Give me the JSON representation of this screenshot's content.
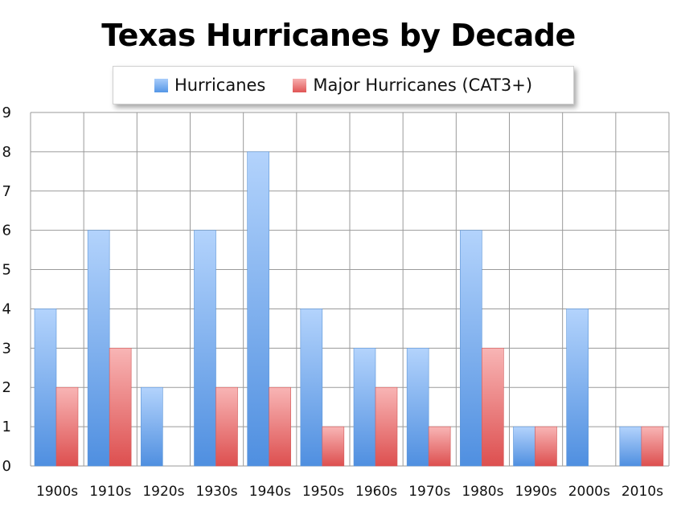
{
  "colors": {
    "hurricanes": "#6fa8f0",
    "major": "#ec6b6b"
  },
  "chart_data": {
    "type": "bar",
    "title": "Texas Hurricanes by Decade",
    "xlabel": "",
    "ylabel": "",
    "ylim": [
      0,
      9
    ],
    "yticks": [
      "0",
      "1",
      "2",
      "3",
      "4",
      "5",
      "6",
      "7",
      "8",
      "9"
    ],
    "grid": true,
    "legend_position": "top",
    "categories": [
      "1900s",
      "1910s",
      "1920s",
      "1930s",
      "1940s",
      "1950s",
      "1960s",
      "1970s",
      "1980s",
      "1990s",
      "2000s",
      "2010s"
    ],
    "series": [
      {
        "name": "Hurricanes",
        "values": [
          4,
          6,
          2,
          6,
          8,
          4,
          3,
          3,
          6,
          1,
          4,
          1
        ]
      },
      {
        "name": "Major Hurricanes (CAT3+)",
        "values": [
          2,
          3,
          0,
          2,
          2,
          1,
          2,
          1,
          3,
          1,
          0,
          1
        ]
      }
    ]
  }
}
